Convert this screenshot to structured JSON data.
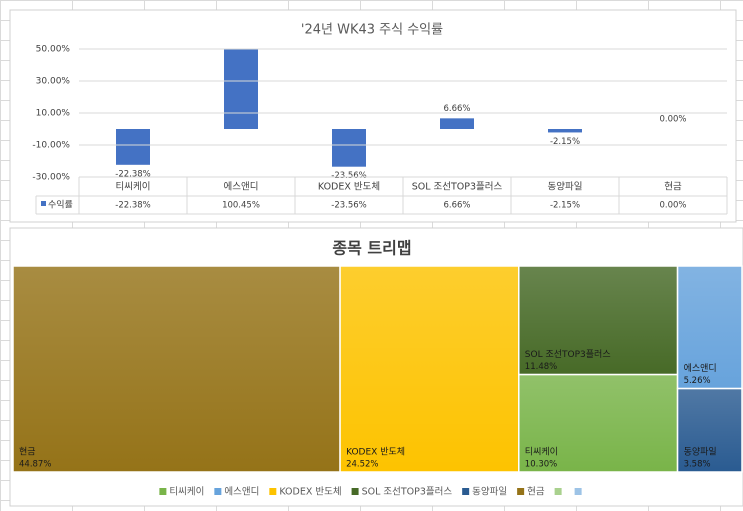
{
  "chart_data": [
    {
      "type": "bar",
      "title": "'24년 WK43 주식 수익률",
      "categories": [
        "티씨케이",
        "에스앤디",
        "KODEX 반도체",
        "SOL 조선TOP3플러스",
        "동양파일",
        "현금"
      ],
      "series": [
        {
          "name": "수익률",
          "color": "#4472c4",
          "values": [
            -22.38,
            100.45,
            -23.56,
            6.66,
            -2.15,
            0.0
          ],
          "value_labels": [
            "-22.38%",
            "100.45%",
            "-23.56%",
            "6.66%",
            "-2.15%",
            "0.00%"
          ]
        }
      ],
      "ylim": [
        -30,
        50
      ],
      "yticks": [
        {
          "value": 50,
          "label": "50.00%"
        },
        {
          "value": 30,
          "label": "30.00%"
        },
        {
          "value": 10,
          "label": "10.00%"
        },
        {
          "value": -10,
          "label": "-10.00%"
        },
        {
          "value": -30,
          "label": "-30.00%"
        }
      ],
      "grid": true,
      "data_table": true
    },
    {
      "type": "treemap",
      "title": "종목 트리맵",
      "categories": [
        "현금",
        "KODEX 반도체",
        "SOL 조선TOP3플러스",
        "티씨케이",
        "에스앤디",
        "동양파일"
      ],
      "values": [
        44.87,
        24.52,
        11.48,
        10.3,
        5.26,
        3.58
      ],
      "value_labels": [
        "44.87%",
        "24.52%",
        "11.48%",
        "10.30%",
        "5.26%",
        "3.58%"
      ],
      "colors": [
        "#957318",
        "#fdc300",
        "#476a27",
        "#79b449",
        "#67a3dc",
        "#2a5b91"
      ],
      "legend": {
        "position": "bottom",
        "entries": [
          {
            "name": "티씨케이",
            "color": "#79b449"
          },
          {
            "name": "에스앤디",
            "color": "#67a3dc"
          },
          {
            "name": "KODEX 반도체",
            "color": "#fdc300"
          },
          {
            "name": "SOL 조선TOP3플러스",
            "color": "#476a27"
          },
          {
            "name": "동양파일",
            "color": "#2a5b91"
          },
          {
            "name": "현금",
            "color": "#957318"
          },
          {
            "name": null,
            "color": "#a9d18e"
          },
          {
            "name": null,
            "color": "#9dc3e6"
          }
        ]
      }
    }
  ]
}
